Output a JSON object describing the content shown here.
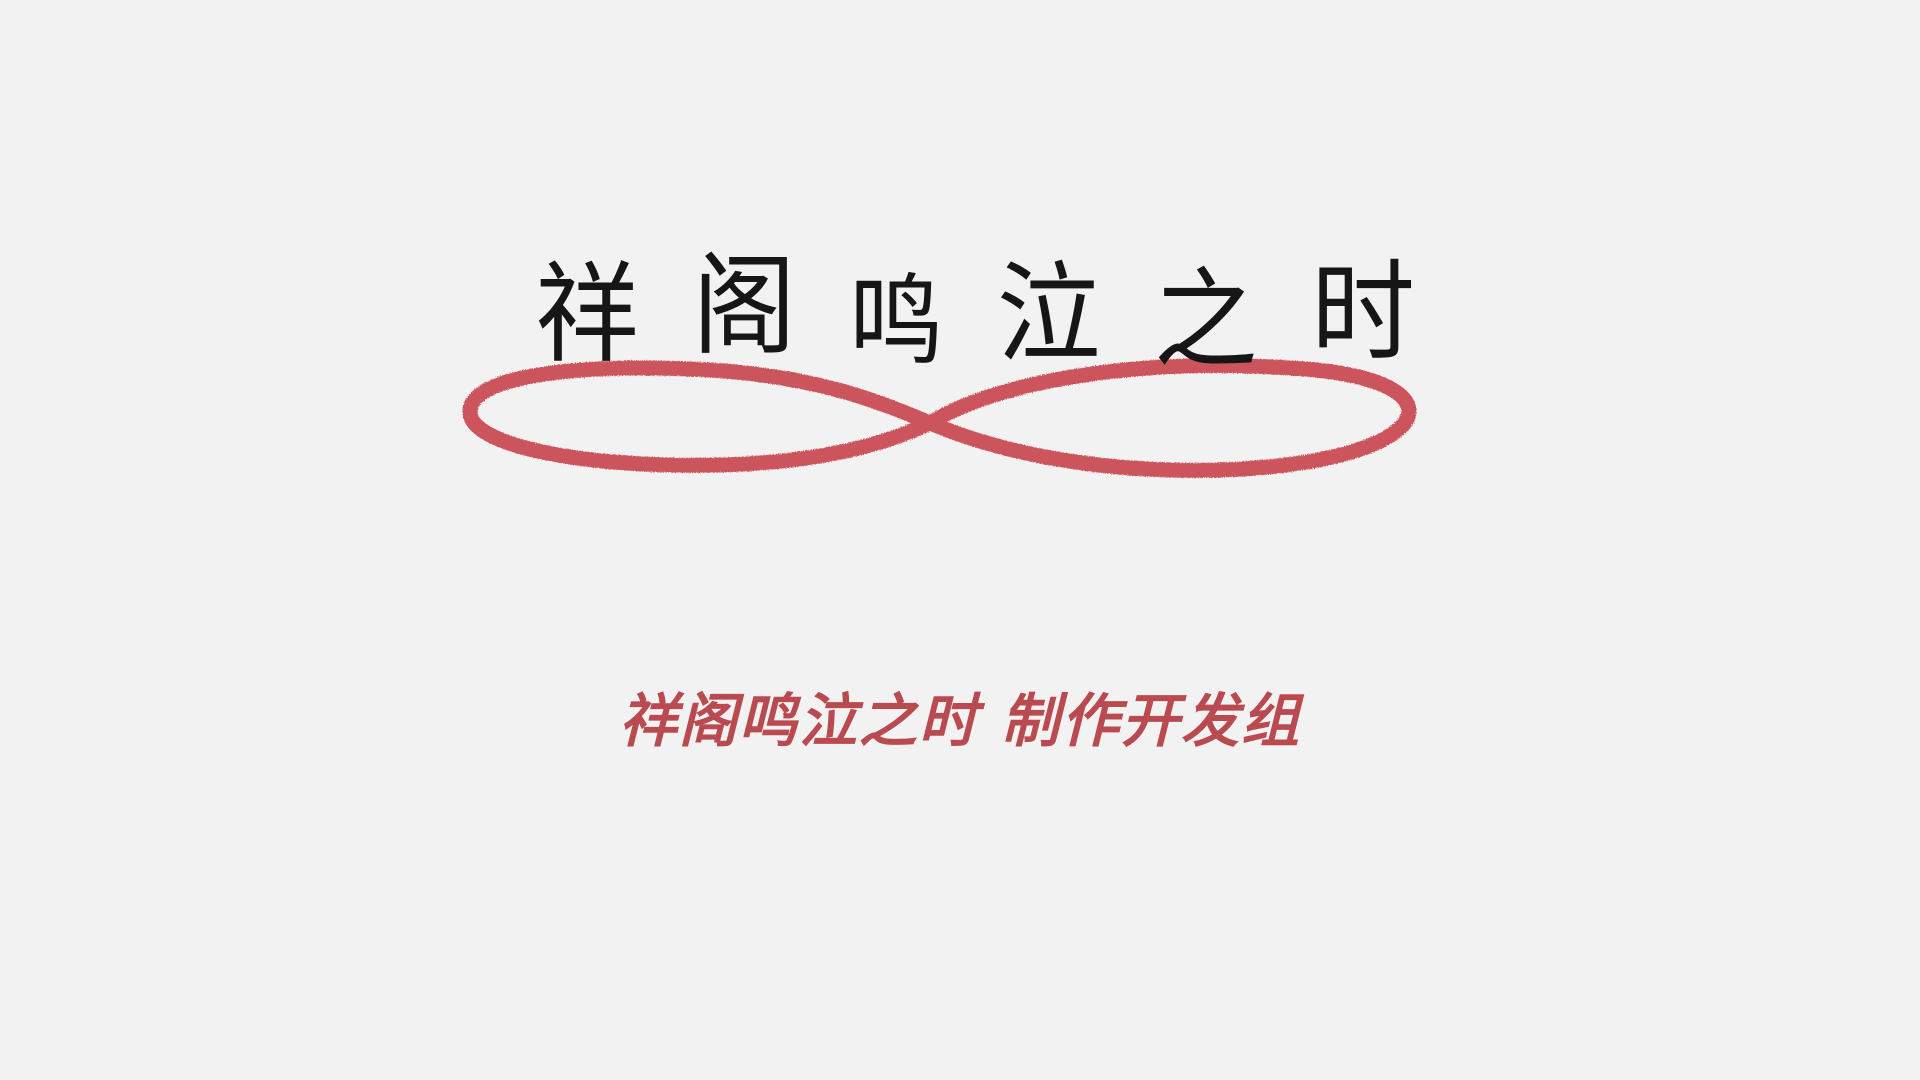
{
  "logo": {
    "title_chars": [
      "祥",
      "阁",
      "鸣",
      "泣",
      "之",
      "时"
    ],
    "ink_color": "#161616",
    "thread_color": "#c8454d",
    "icon": "red-thread-infinity-icon"
  },
  "credits": {
    "text": "祥阁鸣泣之时  制作开发组",
    "color": "#b94a50"
  },
  "background_color": "#f2f2f2"
}
